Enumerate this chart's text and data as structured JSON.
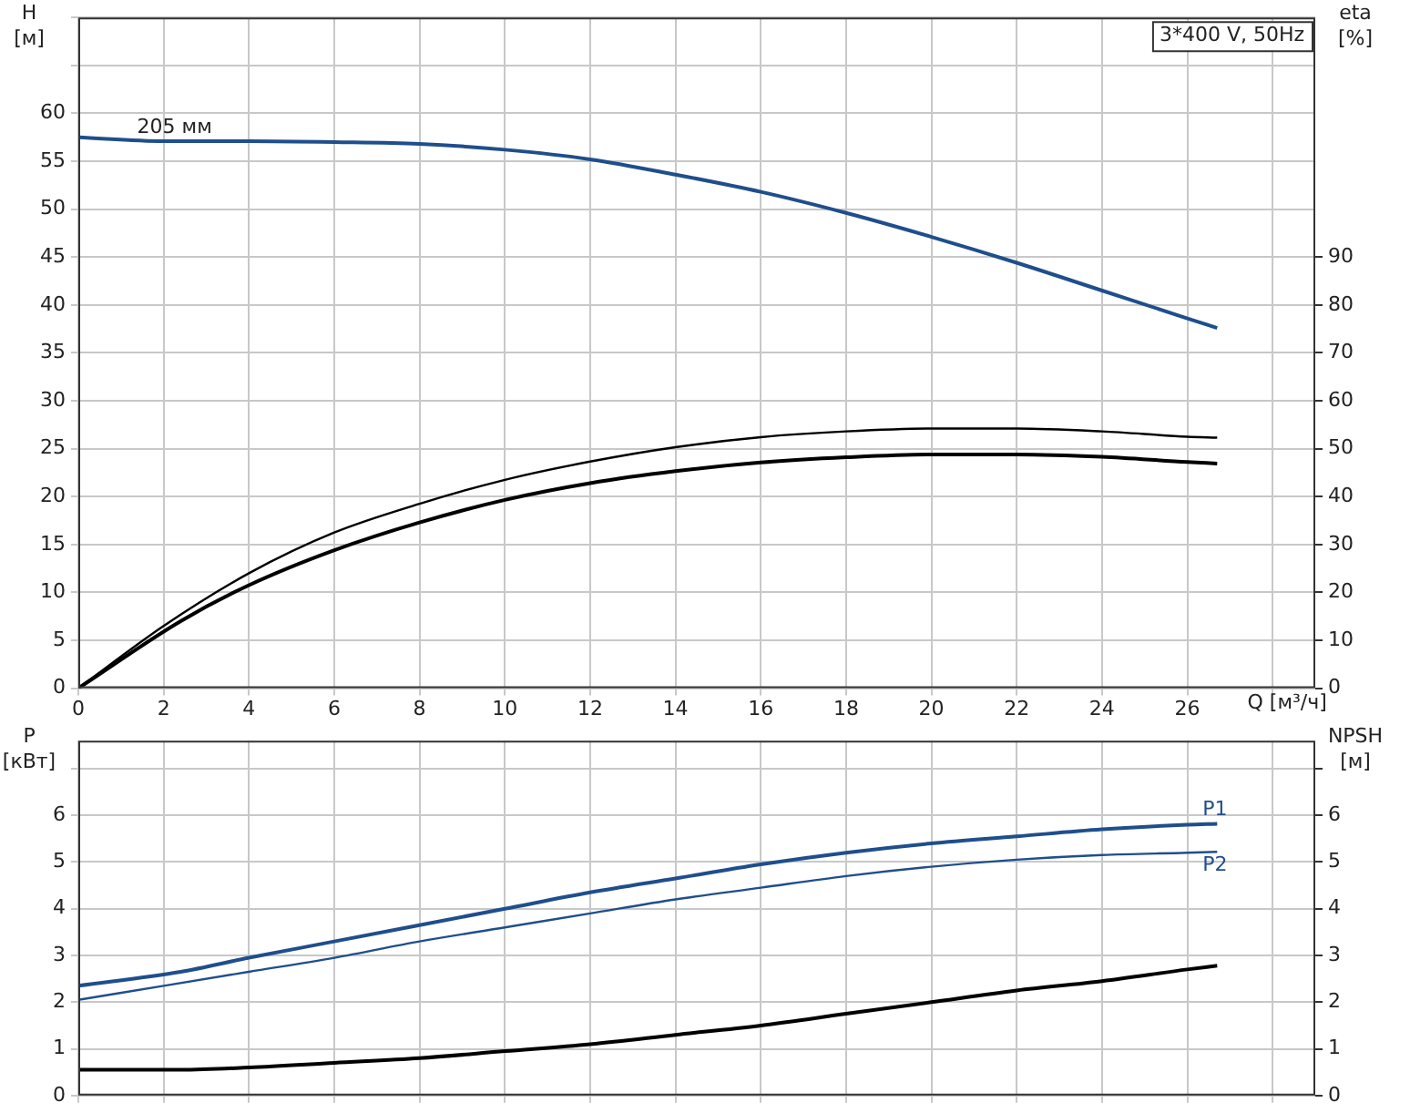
{
  "chart_data": [
    {
      "type": "line",
      "ylabel": "H [м]",
      "y2label": "eta [%]",
      "xlabel": "Q [м³/ч]",
      "annotations": [
        "3*400 V, 50Hz"
      ],
      "xlim": [
        0,
        29
      ],
      "xticks": [
        0,
        2,
        4,
        6,
        8,
        10,
        12,
        14,
        16,
        18,
        20,
        22,
        24,
        26,
        {
          "value": 28,
          "label": null
        }
      ],
      "ylim": [
        0,
        70
      ],
      "yticks": [
        0,
        5,
        10,
        15,
        20,
        25,
        30,
        35,
        40,
        45,
        50,
        55,
        60,
        {
          "value": 65,
          "label": null
        },
        {
          "value": 70,
          "label": null
        }
      ],
      "y2lim": [
        0,
        140
      ],
      "y2ticks": [
        0,
        10,
        20,
        30,
        40,
        50,
        60,
        70,
        80,
        90
      ],
      "grid": true,
      "legend": false,
      "marker": "none",
      "line_style": "solid",
      "series": [
        {
          "name": "205 мм",
          "color": "#1f4e8c",
          "x": [
            0,
            2,
            4,
            6,
            8,
            10,
            12,
            14,
            16,
            18,
            20,
            22,
            24,
            26,
            26.7
          ],
          "values": [
            57.5,
            57.1,
            57.1,
            57,
            56.8,
            56.2,
            55.2,
            53.6,
            51.8,
            49.6,
            47.1,
            44.4,
            41.5,
            38.6,
            37.6
          ]
        },
        {
          "color": "#000000",
          "axis": "y2",
          "x": [
            0,
            2,
            4,
            6,
            8,
            10,
            12,
            14,
            16,
            18,
            20,
            22,
            24,
            26,
            26.7
          ],
          "values": [
            0,
            13,
            24,
            32.5,
            38.5,
            43.5,
            47.3,
            50.3,
            52.4,
            53.6,
            54.2,
            54.2,
            53.6,
            52.5,
            52.3
          ]
        },
        {
          "color": "#000000",
          "axis": "y2",
          "x": [
            0,
            2.4,
            4,
            6,
            8,
            10,
            12,
            14,
            16,
            18,
            20,
            22,
            24,
            26,
            26.7
          ],
          "values": [
            0,
            14,
            21.5,
            28.8,
            34.6,
            39.3,
            42.8,
            45.3,
            47.1,
            48.2,
            48.8,
            48.8,
            48.3,
            47.2,
            46.9
          ]
        }
      ]
    },
    {
      "type": "line",
      "ylabel": "P [кВт]",
      "y2label": "NPSH [м]",
      "xlim": [
        0,
        29
      ],
      "xticks": [
        0,
        2,
        4,
        6,
        8,
        10,
        12,
        14,
        16,
        18,
        20,
        22,
        24,
        26,
        28
      ],
      "ylim": [
        0,
        7.6
      ],
      "yticks": [
        0,
        1,
        2,
        3,
        4,
        5,
        6,
        {
          "value": 7,
          "label": null
        }
      ],
      "y2lim": [
        0,
        7.6
      ],
      "y2ticks": [
        0,
        1,
        2,
        3,
        4,
        5,
        6,
        {
          "value": 7,
          "label": null
        }
      ],
      "tick_labels": "y",
      "grid": true,
      "legend": false,
      "marker": "none",
      "line_style": "solid",
      "series": [
        {
          "name": "P1",
          "color": "#1f4e8c",
          "x": [
            0,
            2.4,
            4,
            6,
            8,
            10,
            12,
            14,
            16,
            18,
            20,
            22,
            24,
            26,
            26.7
          ],
          "values": [
            2.35,
            2.65,
            2.95,
            3.3,
            3.65,
            4,
            4.35,
            4.65,
            4.95,
            5.2,
            5.4,
            5.55,
            5.7,
            5.8,
            5.82
          ]
        },
        {
          "name": "P2",
          "color": "#1f4e8c",
          "x": [
            0,
            2,
            4,
            6,
            8,
            10,
            12,
            14,
            16,
            18,
            20,
            22,
            24,
            26,
            26.7
          ],
          "values": [
            2.05,
            2.35,
            2.65,
            2.95,
            3.3,
            3.6,
            3.9,
            4.2,
            4.45,
            4.7,
            4.9,
            5.05,
            5.15,
            5.2,
            5.22
          ]
        },
        {
          "color": "#000000",
          "axis": "y2",
          "x": [
            0,
            2.4,
            4,
            6,
            8,
            10,
            12,
            14,
            16,
            18,
            20,
            22,
            24,
            26,
            26.7
          ],
          "values": [
            0.55,
            0.55,
            0.6,
            0.7,
            0.8,
            0.95,
            1.1,
            1.3,
            1.5,
            1.75,
            2,
            2.25,
            2.45,
            2.7,
            2.78
          ]
        }
      ]
    }
  ]
}
